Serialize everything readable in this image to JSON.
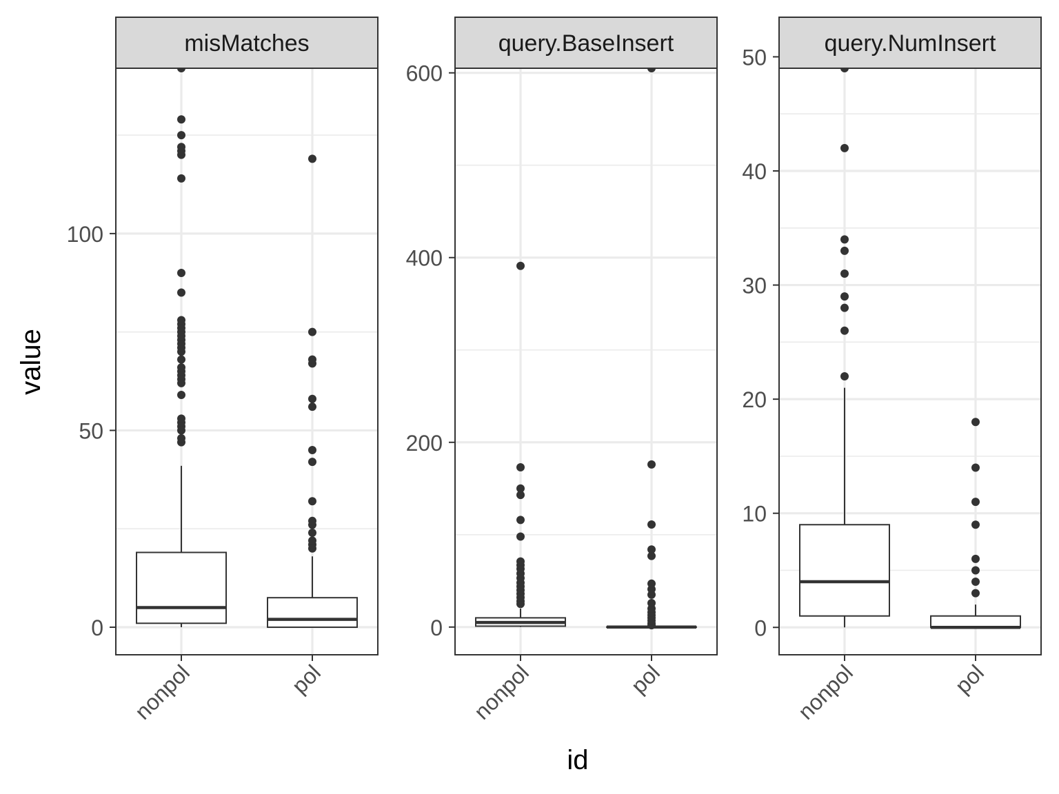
{
  "chart_data": {
    "type": "boxplot",
    "xlabel": "id",
    "ylabel": "value",
    "categories": [
      "nonpol",
      "pol"
    ],
    "grid": true,
    "legend": "none",
    "panels": [
      {
        "title": "misMatches",
        "ylim": [
          -7,
          142
        ],
        "yticks": [
          0,
          50,
          100
        ],
        "boxes": [
          {
            "category": "nonpol",
            "q1": 1,
            "median": 5,
            "q3": 19,
            "whisker_low": 0,
            "whisker_high": 41,
            "outliers": [
              47,
              48,
              50,
              51,
              52,
              53,
              59,
              62,
              63,
              64,
              65,
              66,
              68,
              70,
              71,
              72,
              73,
              74,
              75,
              76,
              77,
              78,
              85,
              90,
              114,
              120,
              121,
              122,
              125,
              129,
              142
            ]
          },
          {
            "category": "pol",
            "q1": 0,
            "median": 2,
            "q3": 7.5,
            "whisker_low": 0,
            "whisker_high": 18,
            "outliers": [
              20,
              21,
              22,
              24,
              26,
              27,
              32,
              42,
              45,
              56,
              58,
              67,
              68,
              75,
              119
            ]
          }
        ]
      },
      {
        "title": "query.BaseInsert",
        "ylim": [
          -30,
          605
        ],
        "yticks": [
          0,
          200,
          400,
          600
        ],
        "boxes": [
          {
            "category": "nonpol",
            "q1": 1,
            "median": 5,
            "q3": 10,
            "whisker_low": 0,
            "whisker_high": 20,
            "outliers": [
              25,
              28,
              32,
              36,
              40,
              44,
              48,
              53,
              58,
              63,
              67,
              71,
              98,
              116,
              143,
              150,
              173,
              391
            ]
          },
          {
            "category": "pol",
            "q1": 0,
            "median": 0,
            "q3": 0,
            "whisker_low": 0,
            "whisker_high": 0,
            "outliers": [
              2,
              4,
              7,
              10,
              13,
              16,
              20,
              26,
              35,
              41,
              47,
              77,
              84,
              111,
              176,
              605
            ]
          }
        ]
      },
      {
        "title": "query.NumInsert",
        "ylim": [
          -2.4,
          49
        ],
        "yticks": [
          0,
          10,
          20,
          30,
          40,
          50
        ],
        "boxes": [
          {
            "category": "nonpol",
            "q1": 1,
            "median": 4,
            "q3": 9,
            "whisker_low": 0,
            "whisker_high": 21,
            "outliers": [
              22,
              26,
              28,
              29,
              31,
              33,
              34,
              42,
              49
            ]
          },
          {
            "category": "pol",
            "q1": 0,
            "median": 0,
            "q3": 1,
            "whisker_low": 0,
            "whisker_high": 2,
            "outliers": [
              3,
              4,
              5,
              6,
              9,
              11,
              14,
              18
            ]
          }
        ]
      }
    ]
  }
}
